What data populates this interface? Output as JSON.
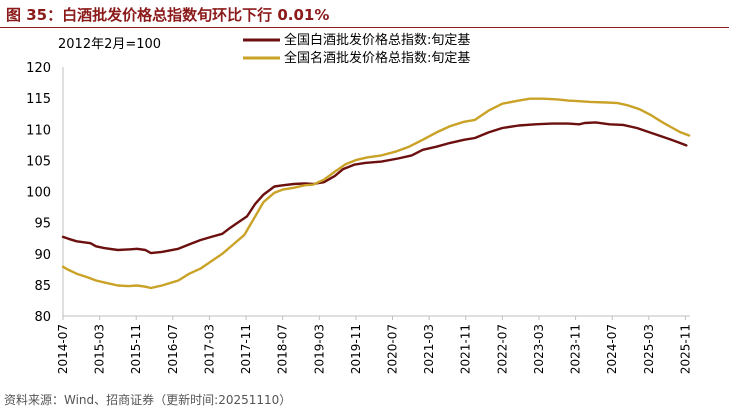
{
  "figure_title": "图 35：白酒批发价格总指数旬环比下行 0.01%",
  "source": "资料来源：Wind、招商证券（更新时间:20251110）",
  "chart_data": {
    "type": "line",
    "title": "图 35：白酒批发价格总指数旬环比下行 0.01%",
    "base_note": "2012年2月=100",
    "ylim": [
      80,
      120
    ],
    "yticks": [
      80,
      85,
      90,
      95,
      100,
      105,
      110,
      115,
      120
    ],
    "xlim": [
      2014.5,
      2025.9167
    ],
    "x_ticks": [
      {
        "label": "2014-07",
        "x": 2014.5
      },
      {
        "label": "2015-03",
        "x": 2015.1667
      },
      {
        "label": "2015-11",
        "x": 2015.8333
      },
      {
        "label": "2016-07",
        "x": 2016.5
      },
      {
        "label": "2017-03",
        "x": 2017.1667
      },
      {
        "label": "2017-11",
        "x": 2017.8333
      },
      {
        "label": "2018-07",
        "x": 2018.5
      },
      {
        "label": "2019-03",
        "x": 2019.1667
      },
      {
        "label": "2019-11",
        "x": 2019.8333
      },
      {
        "label": "2020-07",
        "x": 2020.5
      },
      {
        "label": "2021-03",
        "x": 2021.1667
      },
      {
        "label": "2021-11",
        "x": 2021.8333
      },
      {
        "label": "2022-07",
        "x": 2022.5
      },
      {
        "label": "2023-03",
        "x": 2023.1667
      },
      {
        "label": "2023-11",
        "x": 2023.8333
      },
      {
        "label": "2024-07",
        "x": 2024.5
      },
      {
        "label": "2025-03",
        "x": 2025.1667
      },
      {
        "label": "2025-11",
        "x": 2025.8333
      }
    ],
    "legend_position": "top-center",
    "series": [
      {
        "name": "全国白酒批发价格总指数:旬定基",
        "color": "#6B0F0F",
        "points": [
          [
            2014.5,
            92.7
          ],
          [
            2014.6,
            92.4
          ],
          [
            2014.75,
            92.0
          ],
          [
            2015.0,
            91.7
          ],
          [
            2015.1,
            91.2
          ],
          [
            2015.25,
            90.9
          ],
          [
            2015.5,
            90.6
          ],
          [
            2015.7,
            90.7
          ],
          [
            2015.85,
            90.8
          ],
          [
            2016.0,
            90.6
          ],
          [
            2016.1,
            90.1
          ],
          [
            2016.3,
            90.3
          ],
          [
            2016.6,
            90.8
          ],
          [
            2016.8,
            91.5
          ],
          [
            2017.0,
            92.2
          ],
          [
            2017.2,
            92.7
          ],
          [
            2017.4,
            93.2
          ],
          [
            2017.55,
            94.2
          ],
          [
            2017.7,
            95.1
          ],
          [
            2017.85,
            96.0
          ],
          [
            2018.0,
            98.0
          ],
          [
            2018.15,
            99.5
          ],
          [
            2018.35,
            100.8
          ],
          [
            2018.5,
            101.0
          ],
          [
            2018.7,
            101.2
          ],
          [
            2018.9,
            101.3
          ],
          [
            2019.05,
            101.2
          ],
          [
            2019.25,
            101.5
          ],
          [
            2019.45,
            102.5
          ],
          [
            2019.6,
            103.6
          ],
          [
            2019.8,
            104.3
          ],
          [
            2020.0,
            104.6
          ],
          [
            2020.3,
            104.8
          ],
          [
            2020.6,
            105.3
          ],
          [
            2020.85,
            105.8
          ],
          [
            2021.05,
            106.7
          ],
          [
            2021.3,
            107.2
          ],
          [
            2021.55,
            107.8
          ],
          [
            2021.8,
            108.3
          ],
          [
            2022.0,
            108.6
          ],
          [
            2022.25,
            109.5
          ],
          [
            2022.5,
            110.2
          ],
          [
            2022.8,
            110.6
          ],
          [
            2023.1,
            110.8
          ],
          [
            2023.4,
            110.9
          ],
          [
            2023.7,
            110.9
          ],
          [
            2023.9,
            110.8
          ],
          [
            2024.0,
            111.0
          ],
          [
            2024.2,
            111.1
          ],
          [
            2024.45,
            110.8
          ],
          [
            2024.7,
            110.7
          ],
          [
            2024.95,
            110.2
          ],
          [
            2025.15,
            109.6
          ],
          [
            2025.35,
            109.0
          ],
          [
            2025.55,
            108.4
          ],
          [
            2025.7,
            107.9
          ],
          [
            2025.85,
            107.4
          ]
        ]
      },
      {
        "name": "全国名酒批发价格总指数:旬定基",
        "color": "#C9A227",
        "points": [
          [
            2014.5,
            87.9
          ],
          [
            2014.6,
            87.4
          ],
          [
            2014.75,
            86.8
          ],
          [
            2014.95,
            86.2
          ],
          [
            2015.1,
            85.7
          ],
          [
            2015.25,
            85.4
          ],
          [
            2015.5,
            84.9
          ],
          [
            2015.7,
            84.8
          ],
          [
            2015.85,
            84.9
          ],
          [
            2016.0,
            84.7
          ],
          [
            2016.1,
            84.5
          ],
          [
            2016.3,
            84.9
          ],
          [
            2016.6,
            85.7
          ],
          [
            2016.8,
            86.8
          ],
          [
            2017.0,
            87.6
          ],
          [
            2017.2,
            88.8
          ],
          [
            2017.4,
            90.0
          ],
          [
            2017.6,
            91.5
          ],
          [
            2017.8,
            93.0
          ],
          [
            2018.0,
            96.0
          ],
          [
            2018.15,
            98.3
          ],
          [
            2018.35,
            99.8
          ],
          [
            2018.5,
            100.3
          ],
          [
            2018.7,
            100.6
          ],
          [
            2018.9,
            101.0
          ],
          [
            2019.05,
            101.1
          ],
          [
            2019.25,
            101.9
          ],
          [
            2019.45,
            103.2
          ],
          [
            2019.65,
            104.4
          ],
          [
            2019.85,
            105.1
          ],
          [
            2020.05,
            105.5
          ],
          [
            2020.3,
            105.8
          ],
          [
            2020.55,
            106.4
          ],
          [
            2020.8,
            107.2
          ],
          [
            2021.05,
            108.3
          ],
          [
            2021.3,
            109.5
          ],
          [
            2021.55,
            110.5
          ],
          [
            2021.8,
            111.2
          ],
          [
            2022.0,
            111.5
          ],
          [
            2022.25,
            113.0
          ],
          [
            2022.5,
            114.1
          ],
          [
            2022.8,
            114.6
          ],
          [
            2023.0,
            114.9
          ],
          [
            2023.25,
            114.9
          ],
          [
            2023.5,
            114.8
          ],
          [
            2023.7,
            114.6
          ],
          [
            2023.9,
            114.5
          ],
          [
            2024.1,
            114.4
          ],
          [
            2024.4,
            114.3
          ],
          [
            2024.6,
            114.2
          ],
          [
            2024.8,
            113.8
          ],
          [
            2025.0,
            113.2
          ],
          [
            2025.2,
            112.3
          ],
          [
            2025.4,
            111.2
          ],
          [
            2025.6,
            110.2
          ],
          [
            2025.75,
            109.5
          ],
          [
            2025.9,
            109.0
          ]
        ]
      }
    ]
  }
}
